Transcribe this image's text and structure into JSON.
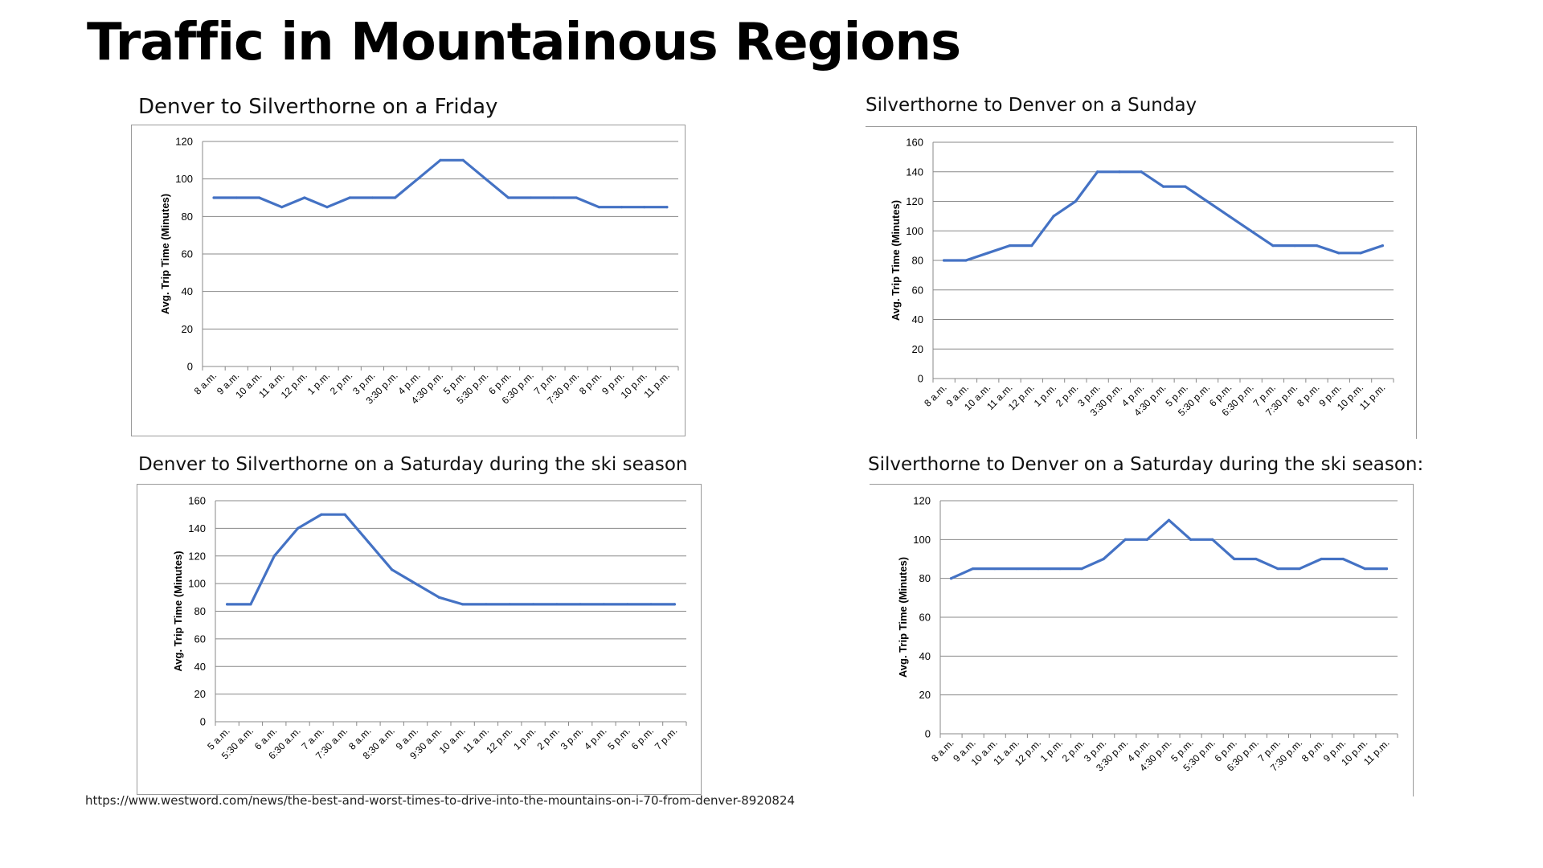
{
  "slide": {
    "title": "Traffic in Mountainous Regions",
    "source": "https://www.westword.com/news/the-best-and-worst-times-to-drive-into-the-mountains-on-i-70-from-denver-8920824"
  },
  "colors": {
    "line": "#4472c4",
    "grid": "#888888",
    "axis": "#888888",
    "text": "#000000"
  },
  "chart_data": [
    {
      "type": "line",
      "title": "Denver to Silverthorne on a Friday",
      "xlabel": "",
      "ylabel": "Avg. Trip Time (Minutes)",
      "ylim": [
        0,
        120
      ],
      "yticks": [
        0,
        20,
        40,
        60,
        80,
        100,
        120
      ],
      "grid": true,
      "categories": [
        "8 a.m.",
        "9 a.m.",
        "10 a.m.",
        "11 a.m.",
        "12 p.m.",
        "1 p.m.",
        "2 p.m.",
        "3 p.m.",
        "3:30 p.m.",
        "4 p.m.",
        "4:30 p.m.",
        "5 p.m.",
        "5:30 p.m.",
        "6 p.m.",
        "6:30 p.m.",
        "7 p.m.",
        "7:30 p.m.",
        "8 p.m.",
        "9 p.m.",
        "10 p.m.",
        "11 p.m."
      ],
      "values": [
        90,
        90,
        90,
        85,
        90,
        85,
        90,
        90,
        90,
        100,
        110,
        110,
        100,
        90,
        90,
        90,
        90,
        85,
        85,
        85,
        85
      ]
    },
    {
      "type": "line",
      "title": "Silverthorne to Denver on a Sunday",
      "xlabel": "",
      "ylabel": "Avg. Trip Time (Minutes)",
      "ylim": [
        0,
        160
      ],
      "yticks": [
        0,
        20,
        40,
        60,
        80,
        100,
        120,
        140,
        160
      ],
      "grid": true,
      "categories": [
        "8 a.m.",
        "9 a.m.",
        "10 a.m.",
        "11 a.m.",
        "12 p.m.",
        "1 p.m.",
        "2 p.m.",
        "3 p.m.",
        "3:30 p.m.",
        "4 p.m.",
        "4:30 p.m.",
        "5 p.m.",
        "5:30 p.m.",
        "6 p.m.",
        "6:30 p.m.",
        "7 p.m.",
        "7:30 p.m.",
        "8 p.m.",
        "9 p.m.",
        "10 p.m.",
        "11 p.m."
      ],
      "values": [
        80,
        80,
        85,
        90,
        90,
        110,
        120,
        140,
        140,
        140,
        130,
        130,
        120,
        110,
        100,
        90,
        90,
        90,
        85,
        85,
        90
      ]
    },
    {
      "type": "line",
      "title": "Denver to Silverthorne on a Saturday during the ski season",
      "xlabel": "",
      "ylabel": "Avg. Trip Time (Minutes)",
      "ylim": [
        0,
        160
      ],
      "yticks": [
        0,
        20,
        40,
        60,
        80,
        100,
        120,
        140,
        160
      ],
      "grid": true,
      "categories": [
        "5 a.m.",
        "5:30 a.m.",
        "6 a.m.",
        "6:30 a.m.",
        "7 a.m.",
        "7:30 a.m.",
        "8 a.m.",
        "8:30 a.m.",
        "9 a.m.",
        "9:30 a.m.",
        "10 a.m.",
        "11 a.m.",
        "12 p.m.",
        "1 p.m.",
        "2 p.m.",
        "3 p.m.",
        "4 p.m.",
        "5 p.m.",
        "6 p.m.",
        "7 p.m."
      ],
      "values": [
        85,
        85,
        120,
        140,
        150,
        150,
        130,
        110,
        100,
        90,
        85,
        85,
        85,
        85,
        85,
        85,
        85,
        85,
        85,
        85
      ]
    },
    {
      "type": "line",
      "title": "Silverthorne to Denver on a Saturday during the ski season:",
      "xlabel": "",
      "ylabel": "Avg. Trip Time (Minutes)",
      "ylim": [
        0,
        120
      ],
      "yticks": [
        0,
        20,
        40,
        60,
        80,
        100,
        120
      ],
      "grid": true,
      "categories": [
        "8 a.m.",
        "9 a.m.",
        "10 a.m.",
        "11 a.m.",
        "12 p.m.",
        "1 p.m.",
        "2 p.m.",
        "3 p.m.",
        "3:30 p.m.",
        "4 p.m.",
        "4:30 p.m.",
        "5 p.m.",
        "5:30 p.m.",
        "6 p.m.",
        "6:30 p.m.",
        "7 p.m.",
        "7:30 p.m.",
        "8 p.m.",
        "9 p.m.",
        "10 p.m.",
        "11 p.m."
      ],
      "values": [
        80,
        85,
        85,
        85,
        85,
        85,
        85,
        90,
        100,
        100,
        110,
        100,
        100,
        90,
        90,
        85,
        85,
        90,
        90,
        85,
        85
      ]
    }
  ]
}
